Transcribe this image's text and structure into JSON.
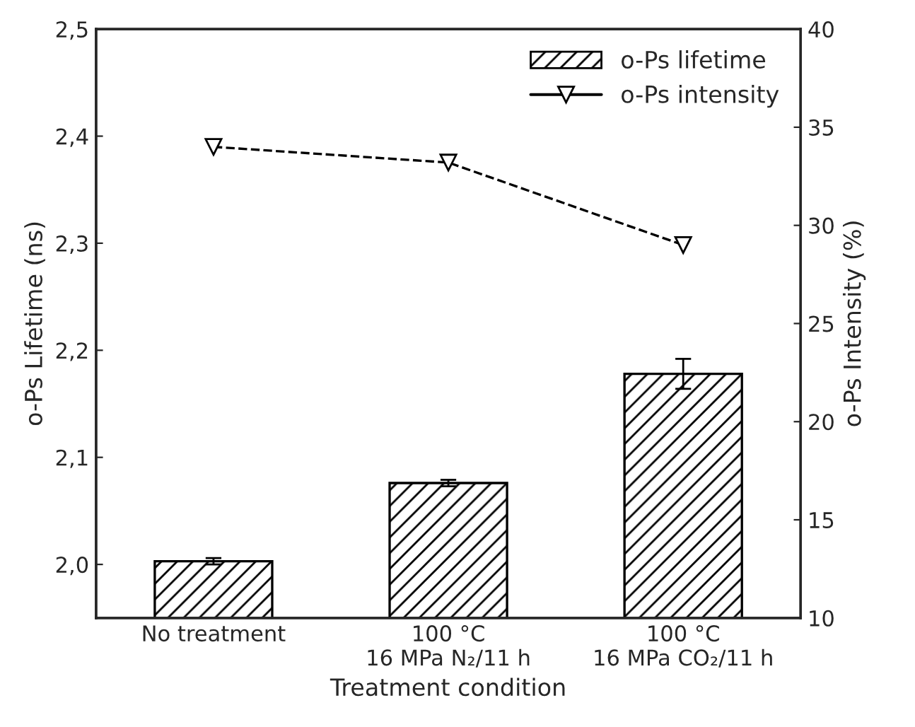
{
  "chart_data": {
    "type": "bar",
    "xlabel": "Treatment condition",
    "ylabel": "o-Ps Lifetime (ns)",
    "y2label": "o-Ps Intensity (%)",
    "categories": [
      "No treatment",
      "100 °C\n16 MPa N₂/11 h",
      "100 °C\n16 MPa CO₂/11 h"
    ],
    "series": [
      {
        "name": "o-Ps lifetime",
        "color": "#000000",
        "values": [
          2.003,
          2.076,
          2.178
        ],
        "errors": [
          0.003,
          0.003,
          0.014
        ]
      },
      {
        "name": "o-Ps intensity",
        "type": "line",
        "axis": "y2",
        "color": "#000000",
        "values": [
          34.0,
          33.2,
          29.0
        ],
        "marker": "triangle",
        "line_style": "dashed"
      }
    ],
    "ylim": [
      1.95,
      2.5
    ],
    "yticks": [
      {
        "value": 2.0,
        "label": "2,0"
      },
      {
        "value": 2.1,
        "label": "2,1"
      },
      {
        "value": 2.2,
        "label": "2,2"
      },
      {
        "value": 2.3,
        "label": "2,3"
      },
      {
        "value": 2.4,
        "label": "2,4"
      },
      {
        "value": 2.5,
        "label": "2,5"
      }
    ],
    "y2lim": [
      10,
      40
    ],
    "y2ticks": [
      10,
      15,
      20,
      25,
      30,
      35,
      40
    ],
    "legend": "top right",
    "grid": false
  }
}
